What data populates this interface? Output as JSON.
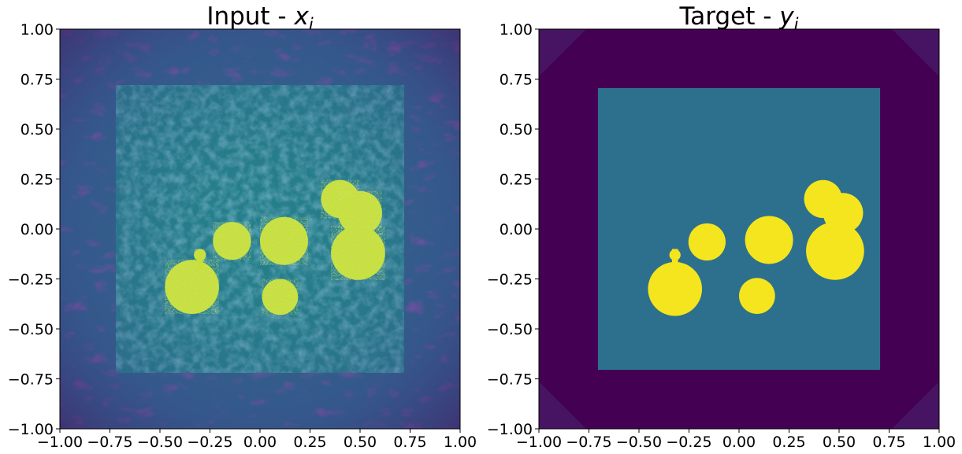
{
  "chart_data": [
    {
      "type": "heatmap",
      "title_text": "Input - ",
      "title_math": "x",
      "title_sub": "i",
      "xlim": [
        -1.0,
        1.0
      ],
      "ylim": [
        -1.0,
        1.0
      ],
      "xticks": [
        "−1.00",
        "−0.75",
        "−0.50",
        "−0.25",
        "0.00",
        "0.25",
        "0.50",
        "0.75",
        "1.00"
      ],
      "yticks": [
        "1.00",
        "0.75",
        "0.50",
        "0.25",
        "0.00",
        "−0.25",
        "−0.50",
        "−0.75",
        "−1.00"
      ],
      "colormap": "viridis",
      "grid": false,
      "description_shapes": {
        "outer_square_halfwidth": 0.72,
        "blobs": [
          {
            "cx": -0.34,
            "cy": -0.29,
            "r": 0.135
          },
          {
            "cx": -0.3,
            "cy": -0.13,
            "r": 0.03
          },
          {
            "cx": -0.14,
            "cy": -0.06,
            "r": 0.095
          },
          {
            "cx": 0.12,
            "cy": -0.06,
            "r": 0.12
          },
          {
            "cx": 0.1,
            "cy": -0.34,
            "r": 0.09
          },
          {
            "cx": 0.4,
            "cy": 0.15,
            "r": 0.095
          },
          {
            "cx": 0.5,
            "cy": 0.08,
            "r": 0.11
          },
          {
            "cx": 0.49,
            "cy": -0.12,
            "r": 0.135
          }
        ]
      }
    },
    {
      "type": "heatmap",
      "title_text": "Target - ",
      "title_math": "y",
      "title_sub": "i",
      "xlim": [
        -1.0,
        1.0
      ],
      "ylim": [
        -1.0,
        1.0
      ],
      "xticks": [
        "−1.00",
        "−0.75",
        "−0.50",
        "−0.25",
        "0.00",
        "0.25",
        "0.50",
        "0.75",
        "1.00"
      ],
      "yticks": [
        "1.00",
        "0.75",
        "0.50",
        "0.25",
        "0.00",
        "−0.25",
        "−0.50",
        "−0.75",
        "−1.00"
      ],
      "colormap": "viridis",
      "grid": false,
      "inner_square_halfwidth": 0.705,
      "blobs": [
        {
          "cx": -0.32,
          "cy": -0.3,
          "r": 0.135
        },
        {
          "cx": -0.32,
          "cy": -0.13,
          "r": 0.028
        },
        {
          "cx": -0.16,
          "cy": -0.065,
          "r": 0.093
        },
        {
          "cx": 0.15,
          "cy": -0.055,
          "r": 0.12
        },
        {
          "cx": 0.09,
          "cy": -0.335,
          "r": 0.09
        },
        {
          "cx": 0.42,
          "cy": 0.15,
          "r": 0.095
        },
        {
          "cx": 0.52,
          "cy": 0.08,
          "r": 0.1
        },
        {
          "cx": 0.48,
          "cy": -0.11,
          "r": 0.145
        }
      ]
    }
  ],
  "colors": {
    "viridis_dark": "#440154",
    "viridis_mid_dark": "#31688e",
    "viridis_teal": "#2d708e",
    "viridis_green": "#29af7f",
    "viridis_yellow": "#f4e51e"
  }
}
